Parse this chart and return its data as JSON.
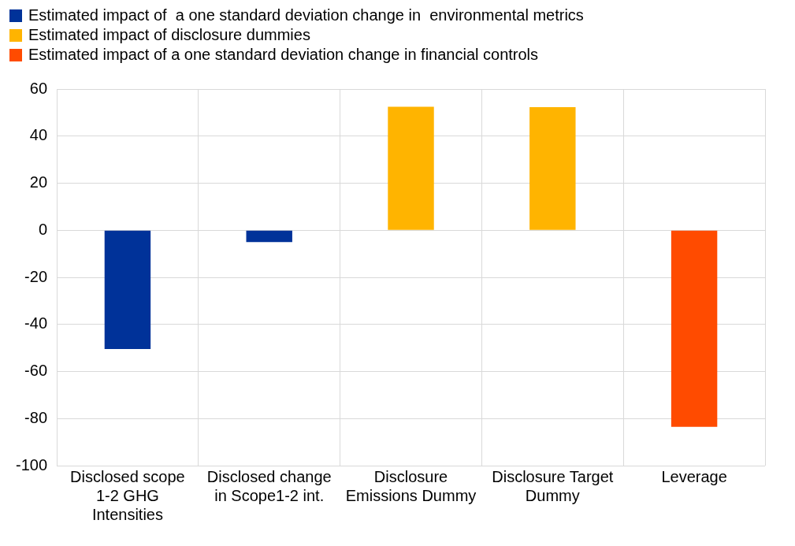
{
  "chart_data": {
    "type": "bar",
    "categories": [
      "Disclosed scope 1-2 GHG Intensities",
      "Disclosed change in Scope1-2 int.",
      "Disclosure Emissions Dummy",
      "Disclosure Target Dummy",
      "Leverage"
    ],
    "series": [
      {
        "name": "Estimated impact of  a one standard deviation change in  environmental metrics",
        "color": "#003299",
        "values": [
          -50.5,
          -5,
          null,
          null,
          null
        ]
      },
      {
        "name": "Estimated impact of disclosure dummies",
        "color": "#ffb400",
        "values": [
          null,
          null,
          52.5,
          52.3,
          null
        ]
      },
      {
        "name": "Estimated impact of a one standard deviation change in financial controls",
        "color": "#ff4b00",
        "values": [
          null,
          null,
          null,
          null,
          -83.5
        ]
      }
    ],
    "ylim": [
      -100,
      60
    ],
    "yticks": [
      -100,
      -80,
      -60,
      -40,
      -20,
      0,
      20,
      40,
      60
    ],
    "grid": true,
    "legend": "top left"
  }
}
